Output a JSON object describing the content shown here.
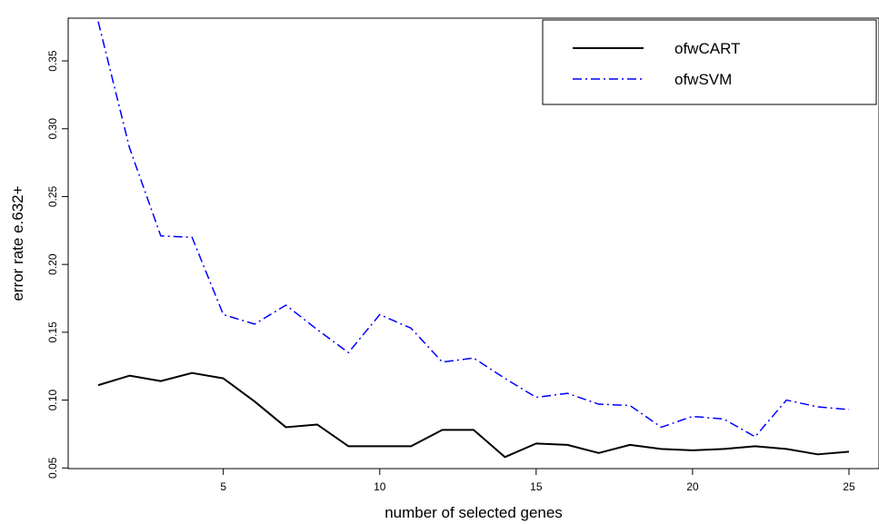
{
  "chart_data": {
    "type": "line",
    "title": "",
    "xlabel": "number of selected genes",
    "ylabel": "error rate e.632+",
    "x": [
      1,
      2,
      3,
      4,
      5,
      6,
      7,
      8,
      9,
      10,
      11,
      12,
      13,
      14,
      15,
      16,
      17,
      18,
      19,
      20,
      21,
      22,
      23,
      24,
      25
    ],
    "xlim": [
      0.04,
      25.96
    ],
    "ylim": [
      0.0495,
      0.3815
    ],
    "xticks": [
      5,
      10,
      15,
      20,
      25
    ],
    "xtick_labels": [
      "5",
      "10",
      "15",
      "20",
      "25"
    ],
    "yticks": [
      0.05,
      0.1,
      0.15,
      0.2,
      0.25,
      0.3,
      0.35
    ],
    "ytick_labels": [
      "0.05",
      "0.10",
      "0.15",
      "0.20",
      "0.25",
      "0.30",
      "0.35"
    ],
    "grid": false,
    "legend_position": "top-right",
    "series": [
      {
        "name": "ofwCART",
        "color": "#000000",
        "line_style": "solid",
        "values": [
          0.111,
          0.118,
          0.114,
          0.12,
          0.116,
          0.099,
          0.08,
          0.082,
          0.066,
          0.066,
          0.066,
          0.078,
          0.078,
          0.058,
          0.068,
          0.067,
          0.061,
          0.067,
          0.064,
          0.063,
          0.064,
          0.066,
          0.064,
          0.06,
          0.062
        ]
      },
      {
        "name": "ofwSVM",
        "color": "#0000ff",
        "line_style": "dot-dash",
        "values": [
          0.379,
          0.286,
          0.221,
          0.22,
          0.163,
          0.156,
          0.17,
          0.152,
          0.135,
          0.163,
          0.153,
          0.128,
          0.131,
          0.116,
          0.102,
          0.105,
          0.097,
          0.096,
          0.08,
          0.088,
          0.086,
          0.073,
          0.1,
          0.095,
          0.093
        ]
      }
    ]
  }
}
